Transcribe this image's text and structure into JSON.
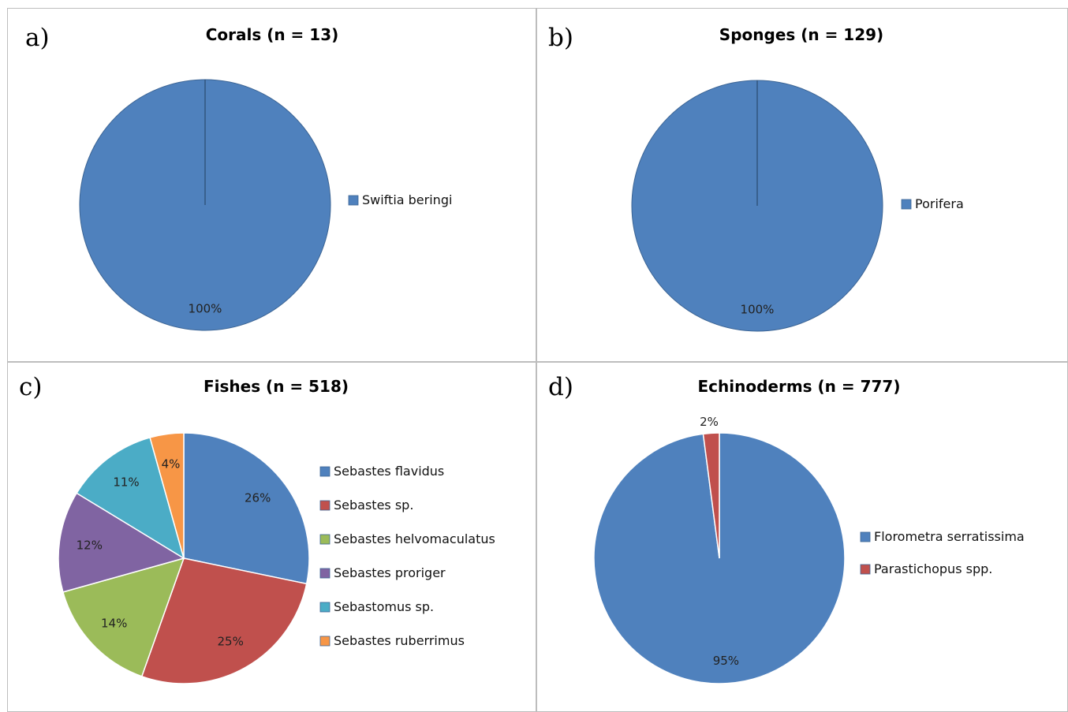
{
  "chart_data": [
    {
      "type": "pie",
      "panel_label": "a)",
      "title": "Corals (n = 13)",
      "categories": [
        "Swiftia beringi"
      ],
      "values": [
        100
      ],
      "data_labels": [
        "100%"
      ],
      "colors": [
        "#4f81bd"
      ],
      "legend": "right"
    },
    {
      "type": "pie",
      "panel_label": "b)",
      "title": "Sponges (n = 129)",
      "categories": [
        "Porifera"
      ],
      "values": [
        100
      ],
      "data_labels": [
        "100%"
      ],
      "colors": [
        "#4f81bd"
      ],
      "legend": "right"
    },
    {
      "type": "pie",
      "panel_label": "c)",
      "title": "Fishes (n = 518)",
      "categories": [
        "Sebastes flavidus",
        "Sebastes sp.",
        "Sebastes helvomaculatus",
        "Sebastes proriger",
        "Sebastomus sp.",
        "Sebastes ruberrimus"
      ],
      "values": [
        26,
        25,
        14,
        12,
        11,
        4
      ],
      "data_labels": [
        "26%",
        "25%",
        "14%",
        "12%",
        "11%",
        "4%"
      ],
      "colors": [
        "#4f81bd",
        "#c0504d",
        "#9bbb59",
        "#8064a2",
        "#4bacc6",
        "#f79646"
      ],
      "legend": "right"
    },
    {
      "type": "pie",
      "panel_label": "d)",
      "title": "Echinoderms (n = 777)",
      "categories": [
        "Florometra serratissima",
        "Parastichopus spp."
      ],
      "values": [
        95,
        2
      ],
      "data_labels": [
        "95%",
        "2%"
      ],
      "colors": [
        "#4f81bd",
        "#c0504d"
      ],
      "legend": "right"
    }
  ]
}
